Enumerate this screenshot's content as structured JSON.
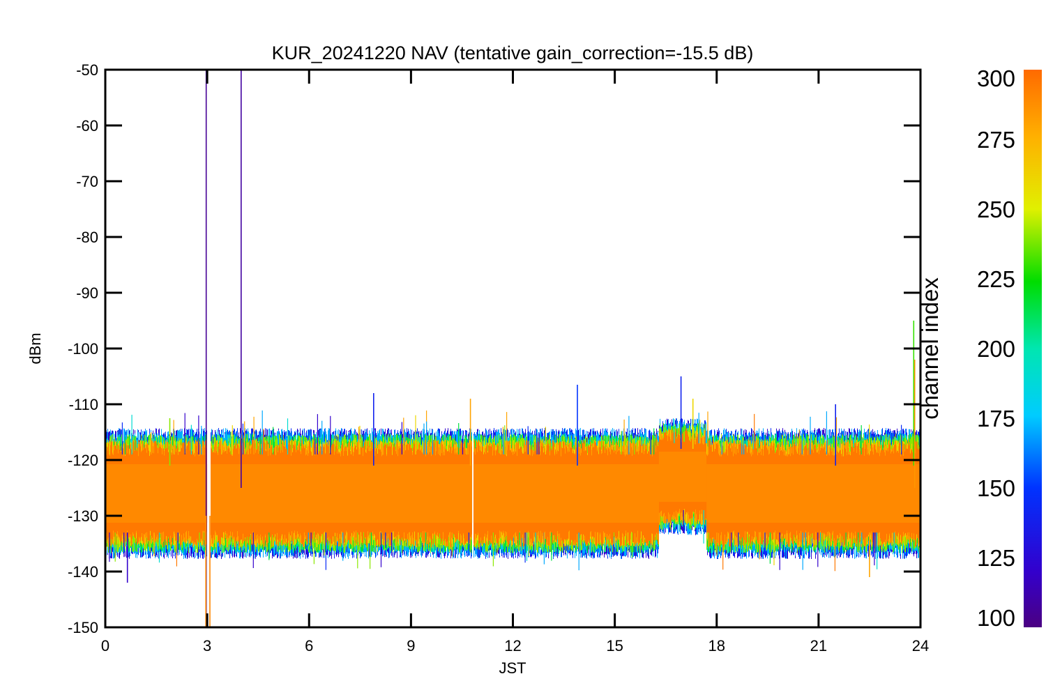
{
  "chart_data": {
    "type": "line",
    "title": "KUR_20241220 NAV (tentative gain_correction=-15.5 dB)",
    "xlabel": "JST",
    "ylabel": "dBm",
    "xlim": [
      0,
      24
    ],
    "ylim": [
      -150,
      -50
    ],
    "x_ticks": [
      0,
      3,
      6,
      9,
      12,
      15,
      18,
      21,
      24
    ],
    "y_ticks": [
      -50,
      -60,
      -70,
      -80,
      -90,
      -100,
      -110,
      -120,
      -130,
      -140,
      -150
    ],
    "grid": false,
    "colorbar": {
      "label": "channel index",
      "range": [
        100,
        300
      ],
      "ticks": [
        300,
        275,
        250,
        225,
        200,
        175,
        150,
        125,
        100
      ],
      "colormap": "rainbow (purple → blue → cyan → green → yellow → orange)"
    },
    "noise_band": [
      {
        "x_start": 0,
        "x_end": 16.3,
        "median_dBm": -126,
        "core_low_dBm": -133,
        "core_high_dBm": -119
      },
      {
        "x_start": 16.3,
        "x_end": 17.7,
        "median_dBm": -123,
        "core_low_dBm": -129,
        "core_high_dBm": -117
      },
      {
        "x_start": 17.7,
        "x_end": 24,
        "median_dBm": -126,
        "core_low_dBm": -133,
        "core_high_dBm": -119
      }
    ],
    "gaps": [
      {
        "x_start": 3.0,
        "x_end": 3.1
      },
      {
        "x_start": 10.8,
        "x_end": 10.85
      }
    ],
    "spikes": [
      {
        "x": 2.97,
        "low_dBm": -150,
        "high_dBm": -50,
        "channel": 105
      },
      {
        "x": 4.0,
        "low_dBm": -125,
        "high_dBm": -50,
        "channel": 108
      },
      {
        "x": 2.96,
        "low_dBm": -150,
        "high_dBm": -130,
        "channel": 290
      },
      {
        "x": 3.08,
        "low_dBm": -150,
        "high_dBm": -130,
        "channel": 290
      },
      {
        "x": 7.9,
        "low_dBm": -121,
        "high_dBm": -108,
        "channel": 140
      },
      {
        "x": 10.75,
        "low_dBm": -121,
        "high_dBm": -109,
        "channel": 280
      },
      {
        "x": 13.9,
        "low_dBm": -121,
        "high_dBm": -106.5,
        "channel": 150
      },
      {
        "x": 16.95,
        "low_dBm": -118,
        "high_dBm": -105,
        "channel": 140
      },
      {
        "x": 17.3,
        "low_dBm": -118,
        "high_dBm": -109,
        "channel": 260
      },
      {
        "x": 21.5,
        "low_dBm": -121,
        "high_dBm": -110,
        "channel": 140
      },
      {
        "x": 23.8,
        "low_dBm": -121,
        "high_dBm": -95,
        "channel": 230
      },
      {
        "x": 23.83,
        "low_dBm": -125,
        "high_dBm": -102,
        "channel": 285
      },
      {
        "x": 22.5,
        "low_dBm": -141,
        "high_dBm": -133,
        "channel": 280
      },
      {
        "x": 0.65,
        "low_dBm": -142,
        "high_dBm": -133,
        "channel": 120
      },
      {
        "x": 1.9,
        "low_dBm": -121,
        "high_dBm": -112.5,
        "channel": 240
      }
    ]
  }
}
